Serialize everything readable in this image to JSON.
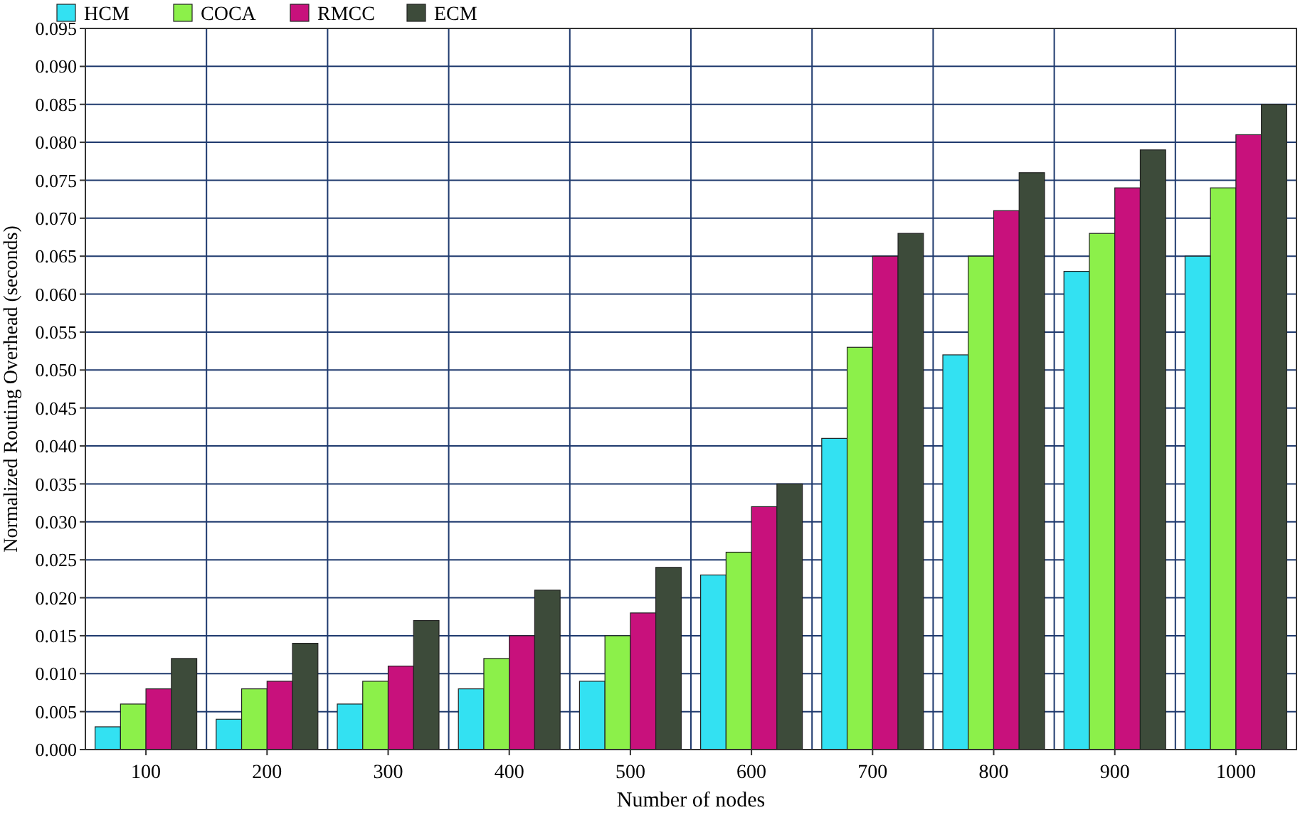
{
  "chart_data": {
    "type": "bar",
    "xlabel": "Number of nodes",
    "ylabel": "Normalized Routing Overhead (seconds)",
    "categories": [
      "100",
      "200",
      "300",
      "400",
      "500",
      "600",
      "700",
      "800",
      "900",
      "1000"
    ],
    "series": [
      {
        "name": "HCM",
        "color": "#33e1f2",
        "values": [
          0.003,
          0.004,
          0.006,
          0.008,
          0.009,
          0.023,
          0.041,
          0.052,
          0.063,
          0.065
        ]
      },
      {
        "name": "COCA",
        "color": "#8cf04a",
        "values": [
          0.006,
          0.008,
          0.009,
          0.012,
          0.015,
          0.026,
          0.053,
          0.065,
          0.068,
          0.074
        ]
      },
      {
        "name": "RMCC",
        "color": "#c8117c",
        "values": [
          0.008,
          0.009,
          0.011,
          0.015,
          0.018,
          0.032,
          0.065,
          0.071,
          0.074,
          0.081
        ]
      },
      {
        "name": "ECM",
        "color": "#3d4b3a",
        "values": [
          0.012,
          0.014,
          0.017,
          0.021,
          0.024,
          0.035,
          0.068,
          0.076,
          0.079,
          0.085
        ]
      }
    ],
    "ylim": [
      0,
      0.095
    ],
    "yticks": [
      {
        "value": 0,
        "label": "0.000"
      },
      {
        "value": 0.005,
        "label": "0.005"
      },
      {
        "value": 0.01,
        "label": "0.010"
      },
      {
        "value": 0.015,
        "label": "0.015"
      },
      {
        "value": 0.02,
        "label": "0.020"
      },
      {
        "value": 0.025,
        "label": "0.025"
      },
      {
        "value": 0.03,
        "label": "0.030"
      },
      {
        "value": 0.035,
        "label": "0.035"
      },
      {
        "value": 0.04,
        "label": "0.040"
      },
      {
        "value": 0.045,
        "label": "0.045"
      },
      {
        "value": 0.05,
        "label": "0.050"
      },
      {
        "value": 0.055,
        "label": "0.055"
      },
      {
        "value": 0.06,
        "label": "0.060"
      },
      {
        "value": 0.065,
        "label": "0.065"
      },
      {
        "value": 0.07,
        "label": "0.070"
      },
      {
        "value": 0.075,
        "label": "0.075"
      },
      {
        "value": 0.08,
        "label": "0.080"
      },
      {
        "value": 0.085,
        "label": "0.085"
      },
      {
        "value": 0.09,
        "label": "0.090"
      },
      {
        "value": 0.095,
        "label": "0.095"
      }
    ],
    "grid": true,
    "legend": "top left"
  }
}
